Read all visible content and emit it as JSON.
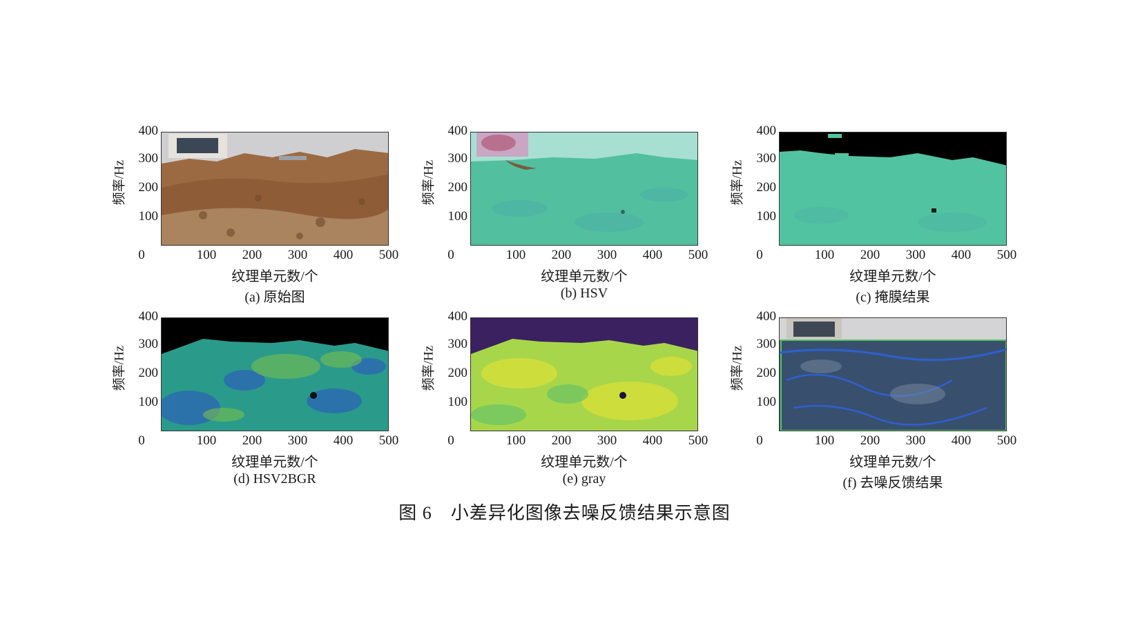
{
  "figure": {
    "caption": "图 6　小差异化图像去噪反馈结果示意图"
  },
  "axes": {
    "y_ticks": [
      "400",
      "300",
      "200",
      "100"
    ],
    "x_ticks": [
      "0",
      "100",
      "200",
      "300",
      "400",
      "500"
    ],
    "y_label": "频率/Hz",
    "x_label": "纹理单元数/个"
  },
  "panels": [
    {
      "caption": "(a) 原始图"
    },
    {
      "caption": "(b) HSV"
    },
    {
      "caption": "(c) 掩膜结果"
    },
    {
      "caption": "(d) HSV2BGR"
    },
    {
      "caption": "(e) gray"
    },
    {
      "caption": "(f) 去噪反馈结果"
    }
  ]
}
